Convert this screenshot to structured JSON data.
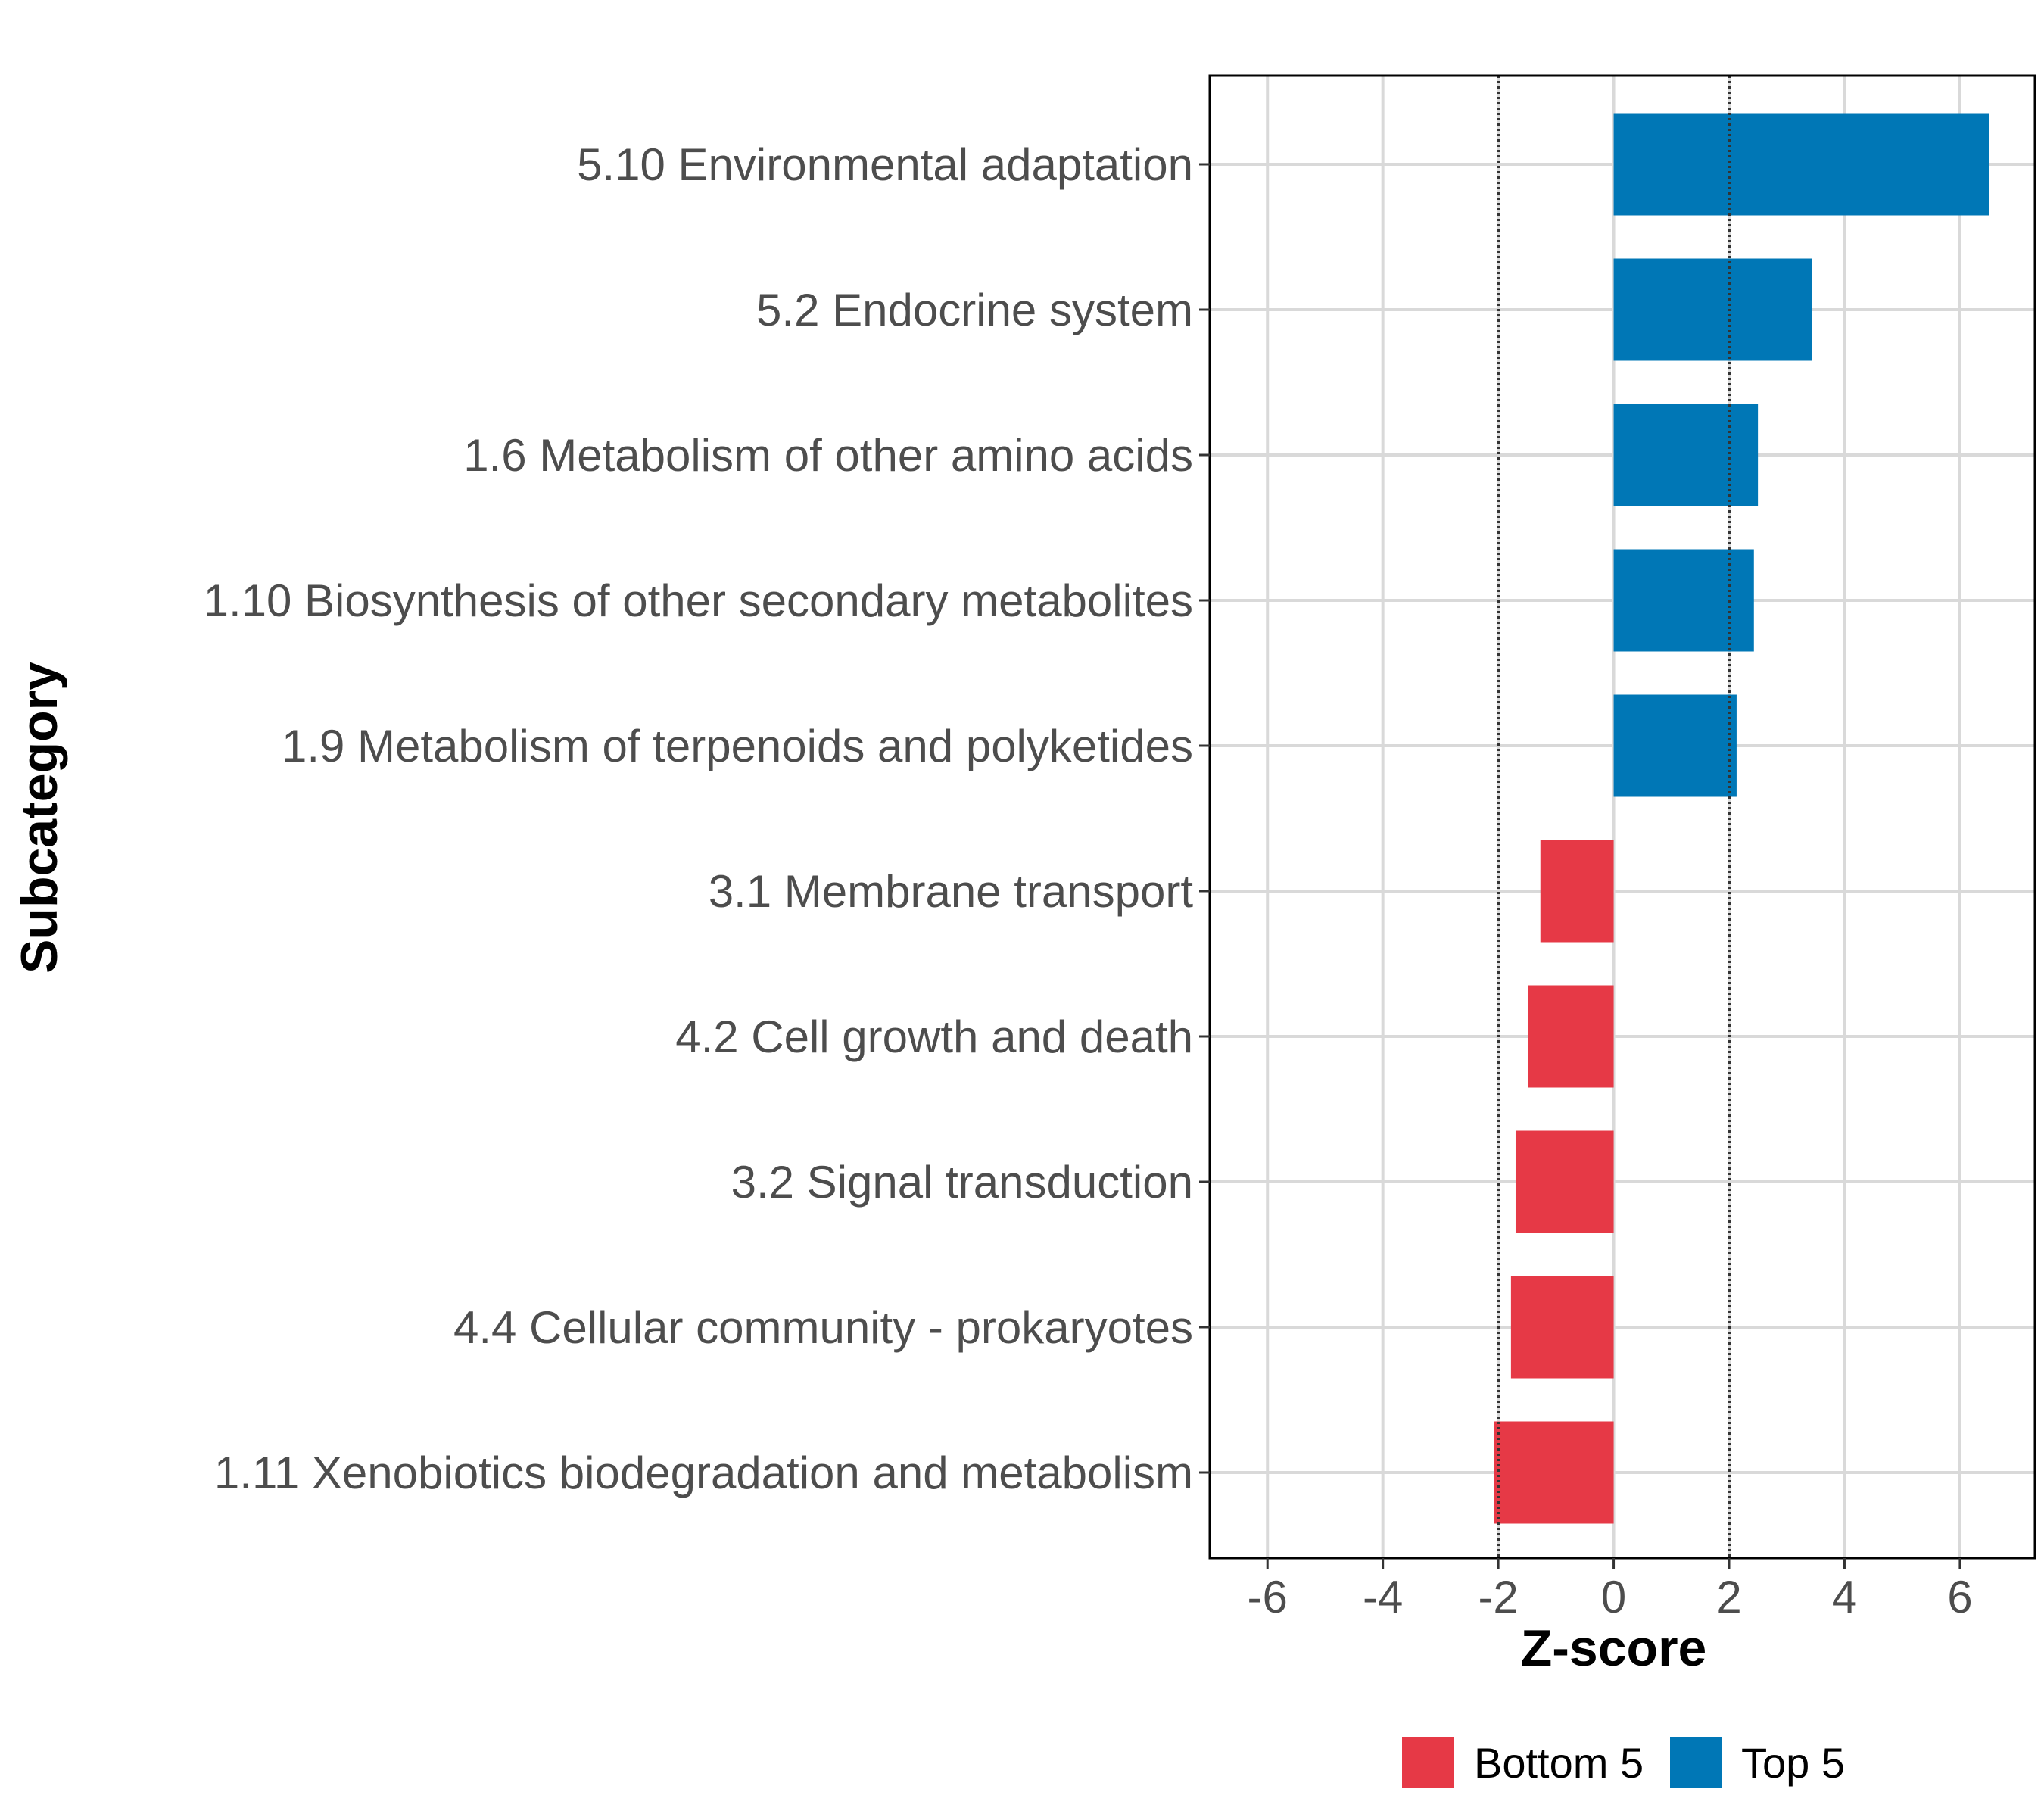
{
  "chart_data": {
    "type": "bar",
    "orientation": "horizontal",
    "title": "",
    "xlabel": "Z-score",
    "ylabel": "Subcategory",
    "xlim": [
      -7,
      7.3
    ],
    "xticks": [
      -6,
      -4,
      -2,
      0,
      2,
      4,
      6
    ],
    "xtick_labels": [
      "-6",
      "-4",
      "-2",
      "0",
      "2",
      "4",
      "6"
    ],
    "reference_lines": [
      -2,
      2
    ],
    "grid": true,
    "legend_position": "bottom",
    "categories": [
      "5.10 Environmental adaptation",
      "5.2 Endocrine system",
      "1.6 Metabolism of other amino acids",
      "1.10 Biosynthesis of other secondary metabolites",
      "1.9 Metabolism of terpenoids and polyketides",
      "3.1 Membrane transport",
      "4.2 Cell growth and death",
      "3.2 Signal transduction",
      "4.4 Cellular community - prokaryotes",
      "1.11 Xenobiotics biodegradation and metabolism"
    ],
    "values": [
      6.5,
      3.43,
      2.5,
      2.43,
      2.13,
      -1.27,
      -1.49,
      -1.7,
      -1.78,
      -2.08
    ],
    "groups": [
      "Top 5",
      "Top 5",
      "Top 5",
      "Top 5",
      "Top 5",
      "Bottom 5",
      "Bottom 5",
      "Bottom 5",
      "Bottom 5",
      "Bottom 5"
    ],
    "legend": [
      {
        "label": "Bottom 5",
        "color": "#E63946"
      },
      {
        "label": "Top 5",
        "color": "#0077B6"
      }
    ]
  }
}
